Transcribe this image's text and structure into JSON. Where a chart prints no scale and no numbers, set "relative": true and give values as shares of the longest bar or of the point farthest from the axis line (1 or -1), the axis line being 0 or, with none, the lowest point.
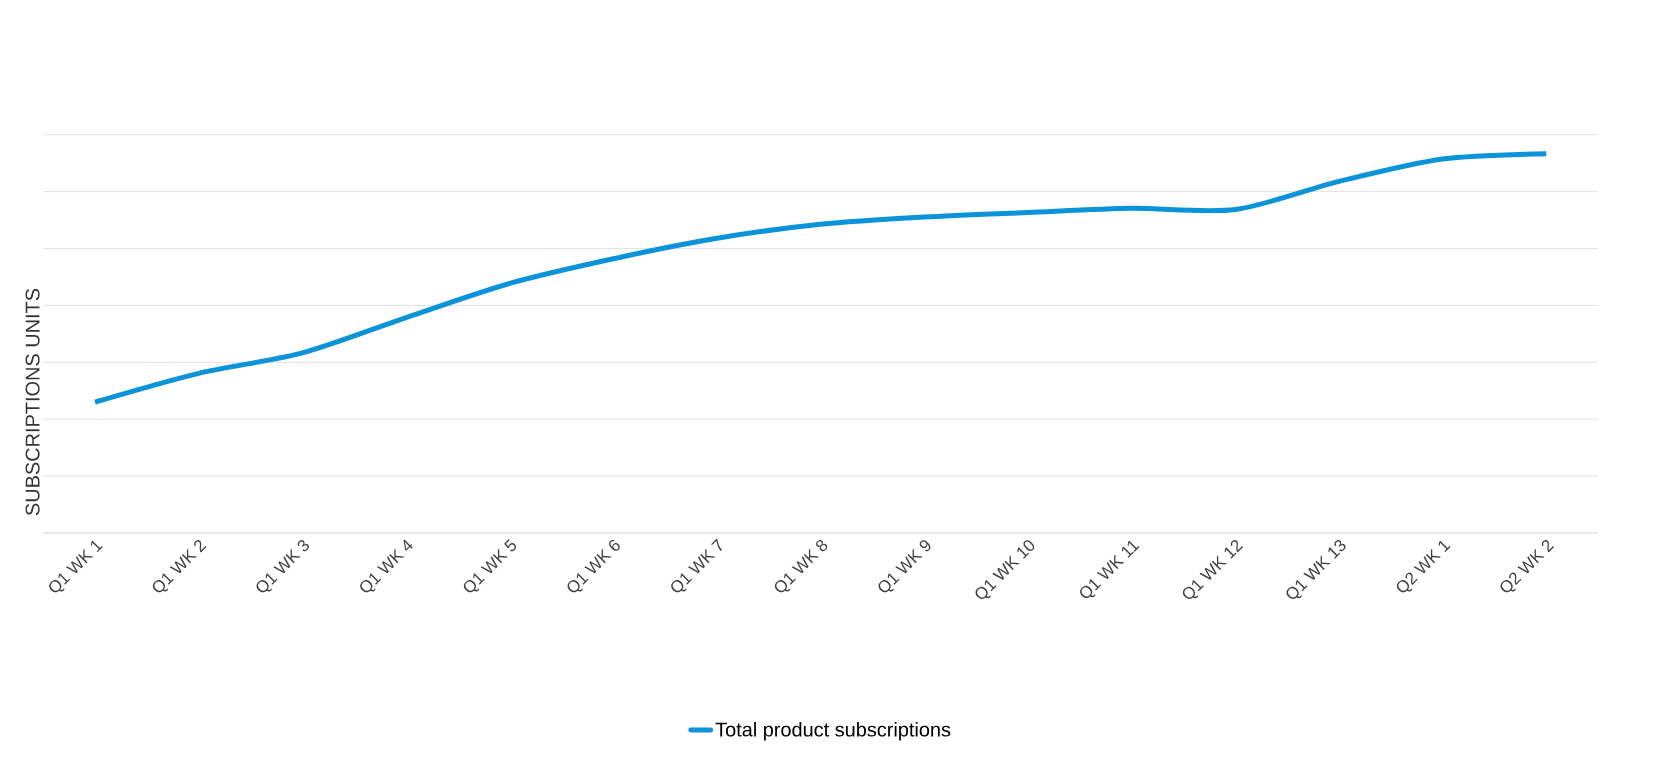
{
  "chart_data": {
    "type": "line",
    "ylabel": "SUBSCRIPTIONS UNITS",
    "relative": true,
    "grid": "y",
    "legend": "bottom",
    "marker": "none",
    "line_style": "solid",
    "categories": [
      "Q1 WK 1",
      "Q1 WK 2",
      "Q1 WK 3",
      "Q1 WK 4",
      "Q1 WK 5",
      "Q1 WK 6",
      "Q1 WK 7",
      "Q1 WK 8",
      "Q1 WK 9",
      "Q1 WK 10",
      "Q1 WK 11",
      "Q1 WK 12",
      "Q1 WK 13",
      "Q2 WK 1",
      "Q2 WK 2"
    ],
    "series": [
      {
        "name": "Total product subscriptions",
        "color": "#0a93d8",
        "values": [
          0.345,
          0.421,
          0.475,
          0.568,
          0.658,
          0.723,
          0.777,
          0.814,
          0.833,
          0.845,
          0.856,
          0.853,
          0.927,
          0.986,
          1
        ]
      }
    ]
  }
}
